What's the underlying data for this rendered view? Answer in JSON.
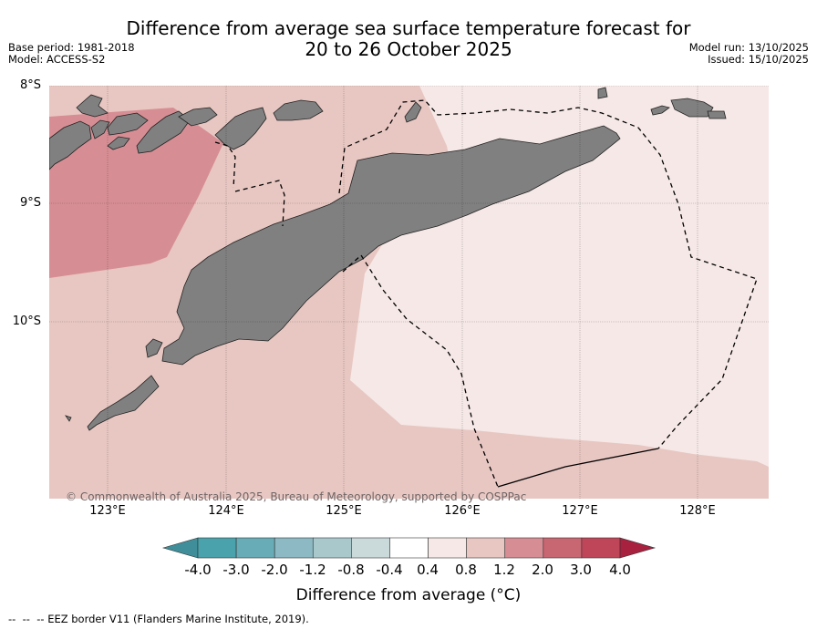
{
  "title": {
    "line1": "Difference from average sea surface temperature forecast for",
    "line2": "20 to 26 October 2025"
  },
  "meta": {
    "base_period": "Base period: 1981-2018",
    "model": "Model: ACCESS-S2",
    "model_run": "Model run: 13/10/2025",
    "issued": "Issued: 15/10/2025"
  },
  "map": {
    "lat_labels": [
      "8°S",
      "9°S",
      "10°S"
    ],
    "lon_labels": [
      "123°E",
      "124°E",
      "125°E",
      "126°E",
      "127°E",
      "128°E"
    ],
    "copyright": "© Commonwealth of Australia 2025, Bureau of Meteorology, supported by COSPPac",
    "colors": {
      "land": "#808080",
      "anomaly_0_4_to_0_8": "#f5e8e6",
      "anomaly_0_8_to_1_2": "#e8c7c2",
      "anomaly_1_2_to_2_0": "#d68e94",
      "eez_border": "#000000"
    }
  },
  "colorbar": {
    "labels": [
      "-4.0",
      "-3.0",
      "-2.0",
      "-1.2",
      "-0.8",
      "-0.4",
      "0.4",
      "0.8",
      "1.2",
      "2.0",
      "3.0",
      "4.0"
    ],
    "colors": [
      "#3f8e99",
      "#4aa2ad",
      "#68acb8",
      "#8cb9c3",
      "#a9c8cc",
      "#cad9da",
      "#ffffff",
      "#f5e8e6",
      "#e8c7c2",
      "#d68e94",
      "#c86672",
      "#be4658",
      "#a8213f"
    ],
    "title": "Difference from average (°C)"
  },
  "footer": "-- EEZ border V11 (Flanders Marine Institute, 2019)."
}
